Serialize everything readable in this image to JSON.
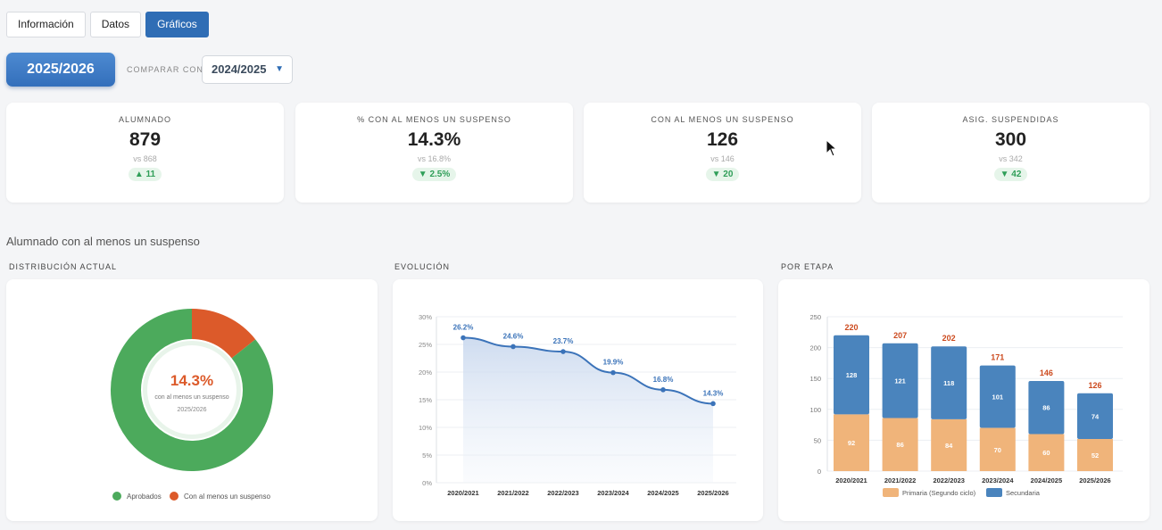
{
  "tabs": [
    {
      "label": "Información",
      "active": false
    },
    {
      "label": "Datos",
      "active": false
    },
    {
      "label": "Gráficos",
      "active": true
    }
  ],
  "period": {
    "current": "2025/2026",
    "compare_label": "COMPARAR CON",
    "compare_value": "2024/2025",
    "caret": "▼"
  },
  "kpis": [
    {
      "label": "ALUMNADO",
      "value": "879",
      "previous": "vs 868",
      "delta": "▲ 11"
    },
    {
      "label": "% CON AL MENOS UN SUSPENSO",
      "value": "14.3%",
      "previous": "vs 16.8%",
      "delta": "▼ 2.5%"
    },
    {
      "label": "CON AL MENOS UN SUSPENSO",
      "value": "126",
      "previous": "vs 146",
      "delta": "▼ 20"
    },
    {
      "label": "ASIG. SUSPENDIDAS",
      "value": "300",
      "previous": "vs 342",
      "delta": "▼ 42"
    }
  ],
  "section_title": "Alumnado con al menos un suspenso",
  "charts_titles": {
    "donut": "DISTRIBUCIÓN ACTUAL",
    "line": "EVOLUCIÓN",
    "bars": "POR ETAPA"
  },
  "colors": {
    "accent": "#2f6db5",
    "pass_green": "#4caa5c",
    "fail_orange": "#dc5a2a",
    "primaria": "#f0b47a",
    "secundaria": "#4a84bd",
    "total_label": "#cc4a1e"
  },
  "chart_data": [
    {
      "type": "pie",
      "title": "DISTRIBUCIÓN ACTUAL",
      "center_value": "14.3%",
      "center_label": "con al menos un suspenso",
      "center_sub": "2025/2026",
      "slices": [
        {
          "name": "Aprobados",
          "value": 85.7,
          "color": "#4caa5c"
        },
        {
          "name": "Con al menos un suspenso",
          "value": 14.3,
          "color": "#dc5a2a"
        }
      ],
      "legend_position": "bottom"
    },
    {
      "type": "line",
      "title": "EVOLUCIÓN",
      "x": [
        "2020/2021",
        "2021/2022",
        "2022/2023",
        "2023/2024",
        "2024/2025",
        "2025/2026"
      ],
      "values": [
        26.2,
        24.6,
        23.7,
        19.9,
        16.8,
        14.3
      ],
      "value_labels": [
        "26.2%",
        "24.6%",
        "23.7%",
        "19.9%",
        "16.8%",
        "14.3%"
      ],
      "yticks": [
        "0%",
        "5%",
        "10%",
        "15%",
        "20%",
        "25%",
        "30%"
      ],
      "ylim": [
        0,
        30
      ],
      "grid": true,
      "area_fill": true
    },
    {
      "type": "bar",
      "stacked": true,
      "title": "POR ETAPA",
      "categories": [
        "2020/2021",
        "2021/2022",
        "2022/2023",
        "2023/2024",
        "2024/2025",
        "2025/2026"
      ],
      "series": [
        {
          "name": "Primaria (Segundo ciclo)",
          "values": [
            92,
            86,
            84,
            70,
            60,
            52
          ],
          "color": "#f0b47a"
        },
        {
          "name": "Secundaria",
          "values": [
            128,
            121,
            118,
            101,
            86,
            74
          ],
          "color": "#4a84bd"
        }
      ],
      "totals": [
        220,
        207,
        202,
        171,
        146,
        126
      ],
      "yticks": [
        "0",
        "50",
        "100",
        "150",
        "200",
        "250"
      ],
      "ylim": [
        0,
        250
      ],
      "grid": true,
      "legend_position": "bottom"
    }
  ]
}
